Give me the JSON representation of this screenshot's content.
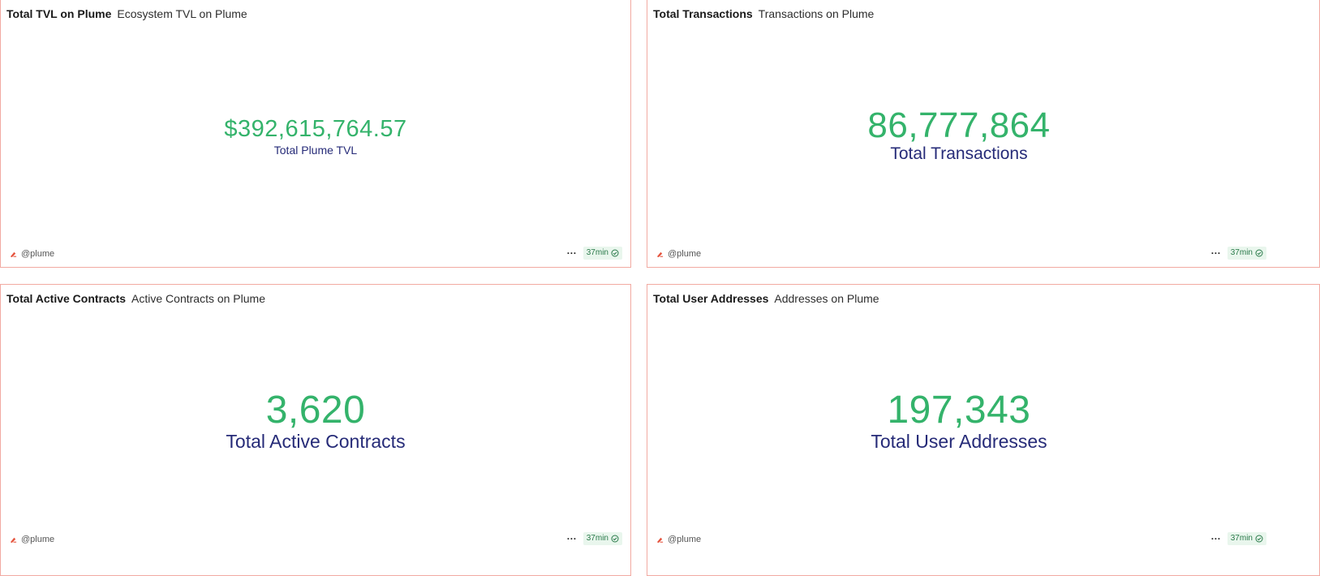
{
  "cards": [
    {
      "title": "Total TVL on Plume",
      "subtitle": "Ecosystem TVL on Plume",
      "value": "$392,615,764.57",
      "label": "Total Plume TVL",
      "author": "@plume",
      "freshness": "37min"
    },
    {
      "title": "Total Transactions",
      "subtitle": "Transactions on Plume",
      "value": "86,777,864",
      "label": "Total Transactions",
      "author": "@plume",
      "freshness": "37min"
    },
    {
      "title": "Total Active Contracts",
      "subtitle": "Active Contracts on Plume",
      "value": "3,620",
      "label": "Total Active Contracts",
      "author": "@plume",
      "freshness": "37min"
    },
    {
      "title": "Total User Addresses",
      "subtitle": "Addresses on Plume",
      "value": "197,343",
      "label": "Total User Addresses",
      "author": "@plume",
      "freshness": "37min"
    }
  ],
  "icons": {
    "author_logo": "dune-logo-icon",
    "more": "more-options-icon",
    "fresh": "check-circle-icon"
  },
  "colors": {
    "value": "#34b36b",
    "label": "#262b78",
    "border": "#f2aaa2",
    "badge_bg": "#e9f6ed"
  }
}
